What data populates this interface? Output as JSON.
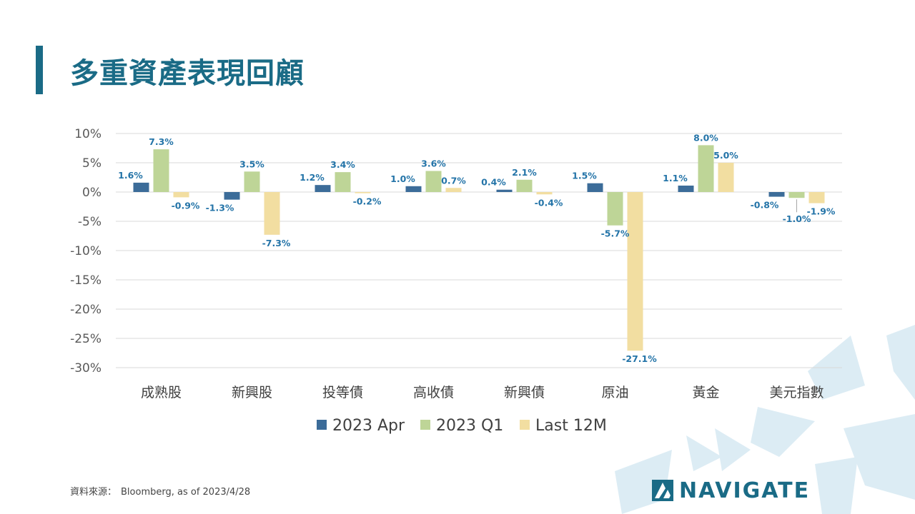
{
  "title": "多重資產表現回顧",
  "source": {
    "label": "資料來源：",
    "text": "Bloomberg, as of 2023/4/28"
  },
  "brand": {
    "name": "NAVIGATE"
  },
  "colors": {
    "accent": "#1a6b86",
    "series_apr": "#3c6c99",
    "series_q1": "#bed597",
    "series_12m": "#f2dea1",
    "label_text": "#2474a8"
  },
  "chart_data": {
    "type": "bar",
    "categories": [
      "成熟股",
      "新興股",
      "投等債",
      "高收債",
      "新興債",
      "原油",
      "黃金",
      "美元指數"
    ],
    "series": [
      {
        "name": "2023 Apr",
        "values": [
          1.6,
          -1.3,
          1.2,
          1.0,
          0.4,
          1.5,
          1.1,
          -0.8
        ],
        "labels": [
          "1.6%",
          "-1.3%",
          "1.2%",
          "1.0%",
          "0.4%",
          "1.5%",
          "1.1%",
          "-0.8%"
        ]
      },
      {
        "name": "2023 Q1",
        "values": [
          7.3,
          3.5,
          3.4,
          3.6,
          2.1,
          -5.7,
          8.0,
          -1.0
        ],
        "labels": [
          "7.3%",
          "3.5%",
          "3.4%",
          "3.6%",
          "2.1%",
          "-5.7%",
          "8.0%",
          "-1.0%"
        ]
      },
      {
        "name": "Last 12M",
        "values": [
          -0.9,
          -7.3,
          -0.2,
          0.7,
          -0.4,
          -27.1,
          5.0,
          -1.9
        ],
        "labels": [
          "-0.9%",
          "-7.3%",
          "-0.2%",
          "0.7%",
          "-0.4%",
          "-27.1%",
          "5.0%",
          "-1.9%"
        ]
      }
    ],
    "yticks": [
      "10%",
      "5%",
      "0%",
      "-5%",
      "-10%",
      "-15%",
      "-20%",
      "-25%",
      "-30%"
    ],
    "ylim": [
      -30,
      10
    ],
    "grid": true,
    "legend": "bottom"
  }
}
